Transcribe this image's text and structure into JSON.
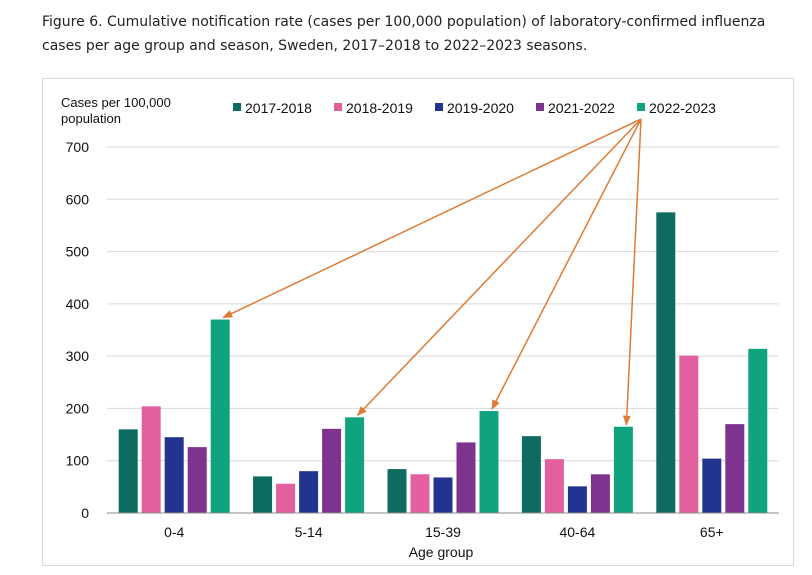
{
  "caption": "Figure 6. Cumulative notification rate (cases per 100,000 population) of laboratory-confirmed influenza cases per age group and season, Sweden, 2017–2018 to 2022–2023 seasons.",
  "chart_data": {
    "type": "bar",
    "categories": [
      "0-4",
      "5-14",
      "15-39",
      "40-64",
      "65+"
    ],
    "series": [
      {
        "name": "2017-2018",
        "color": "#0e6b5f",
        "values": [
          160,
          70,
          84,
          147,
          575
        ]
      },
      {
        "name": "2018-2019",
        "color": "#e3609f",
        "values": [
          204,
          56,
          74,
          103,
          301
        ]
      },
      {
        "name": "2019-2020",
        "color": "#22348f",
        "values": [
          145,
          80,
          68,
          51,
          104
        ]
      },
      {
        "name": "2021-2022",
        "color": "#7e338f",
        "values": [
          126,
          161,
          135,
          74,
          170
        ]
      },
      {
        "name": "2022-2023",
        "color": "#10a37f",
        "values": [
          370,
          183,
          195,
          165,
          314
        ]
      }
    ],
    "xlabel": "Age group",
    "ylabel_lines": [
      "Cases per 100,000",
      "population"
    ],
    "ylim": [
      0,
      700
    ],
    "yticks": [
      0,
      100,
      200,
      300,
      400,
      500,
      600,
      700
    ],
    "legend_position": "top",
    "annotation": {
      "type": "arrows",
      "from": "legend 2022-2023",
      "to_series": "2022-2023",
      "color": "#e07b35"
    }
  }
}
